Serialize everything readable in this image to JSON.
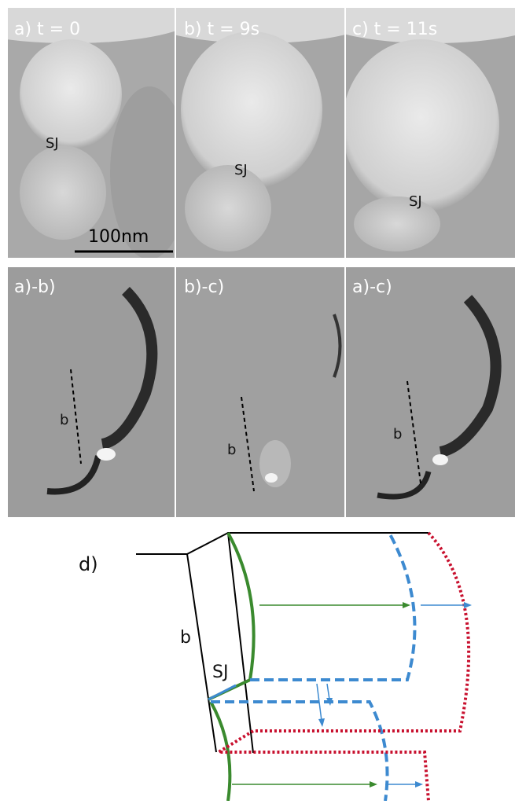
{
  "top_row": {
    "panels": [
      {
        "label": "a) t = 0",
        "marker": "SJ"
      },
      {
        "label": "b) t = 9s",
        "marker": "SJ"
      },
      {
        "label": "c) t = 11s",
        "marker": "SJ"
      }
    ],
    "scale_bar": "100nm"
  },
  "bottom_row": {
    "panels": [
      {
        "label": "a)-b)",
        "marker": "b"
      },
      {
        "label": "b)-c)",
        "marker": "b"
      },
      {
        "label": "a)-c)",
        "marker": "b"
      }
    ]
  },
  "diagram": {
    "label": "d)",
    "slab_label": "b",
    "junction_label": "SJ"
  }
}
